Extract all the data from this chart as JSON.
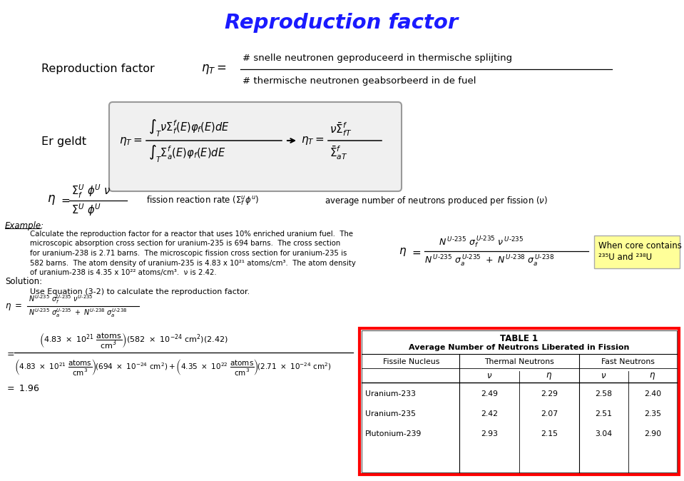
{
  "title": "Reproduction factor",
  "title_color": "#1a1aff",
  "bg_color": "#ffffff",
  "fig_width": 9.59,
  "fig_height": 6.74,
  "repro_label": "Reproduction factor",
  "repro_formula_num": "# snelle neutronen geproduceerd in thermische splijting",
  "repro_formula_den": "# thermische neutronen geabsorbeerd in de fuel",
  "er_geldt_label": "Er geldt",
  "example_label": "Example:",
  "example_text_1": "Calculate the reproduction factor for a reactor that uses 10% enriched uranium fuel.  The",
  "example_text_2": "microscopic absorption cross section for uranium-235 is 694 barns.  The cross section",
  "example_text_3": "for uranium-238 is 2.71 barns.  The microscopic fission cross section for uranium-235 is",
  "example_text_4": "582 barns.  The atom density of uranium-235 is 4.83 x 10²¹ atoms/cm³.  The atom density",
  "example_text_5": "of uranium-238 is 4.35 x 10²² atoms/cm³.  ν is 2.42.",
  "when_core_line1": "When core contains",
  "when_core_line2": "²³⁵U and ²³⁸U",
  "when_core_bg": "#ffff99",
  "solution_label": "Solution:",
  "solution_text": "Use Equation (3-2) to calculate the reproduction factor.",
  "table_title": "TABLE 1",
  "table_subtitle": "Average Number of Neutrons Liberated in Fission",
  "table_data": [
    [
      "Uranium-233",
      "2.49",
      "2.29",
      "2.58",
      "2.40"
    ],
    [
      "Uranium-235",
      "2.42",
      "2.07",
      "2.51",
      "2.35"
    ],
    [
      "Plutonium-239",
      "2.93",
      "2.15",
      "3.04",
      "2.90"
    ]
  ]
}
